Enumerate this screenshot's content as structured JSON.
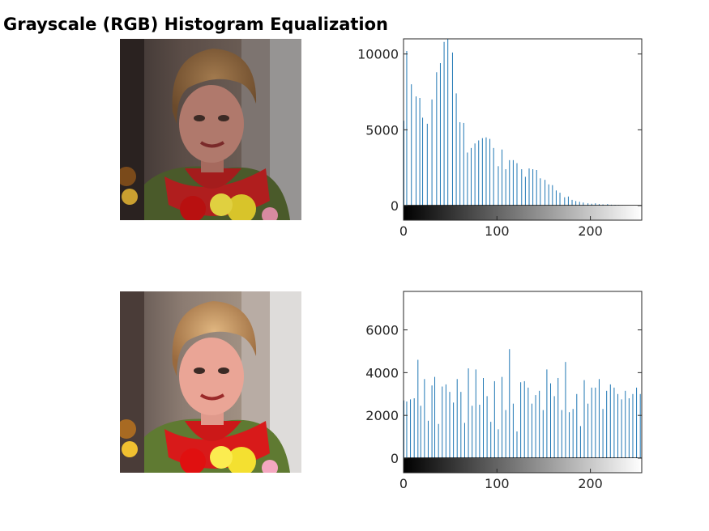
{
  "title": "Grayscale (RGB) Histogram Equalization",
  "images": [
    {
      "name": "original-image",
      "description_icon": "woman-portrait-image"
    },
    {
      "name": "equalized-image",
      "description_icon": "woman-portrait-image"
    }
  ],
  "colors": {
    "bar": "#1f77b4",
    "axis": "#262626"
  },
  "chart_data": [
    {
      "type": "bar",
      "title": "",
      "xlabel": "",
      "ylabel": "",
      "xlim": [
        0,
        255
      ],
      "ylim": [
        0,
        11000
      ],
      "xticks": [
        0,
        100,
        200
      ],
      "yticks": [
        0,
        5000,
        10000
      ],
      "colorbar": "gray",
      "x": [
        0,
        3,
        8,
        13,
        17,
        20,
        25,
        30,
        35,
        39,
        43,
        47,
        52,
        56,
        60,
        64,
        68,
        72,
        76,
        80,
        84,
        88,
        92,
        96,
        101,
        105,
        109,
        113,
        117,
        121,
        126,
        130,
        134,
        138,
        142,
        146,
        151,
        155,
        159,
        163,
        167,
        172,
        176,
        180,
        184,
        188,
        192,
        197,
        201,
        205,
        209,
        213,
        218,
        222,
        226,
        230,
        234,
        239,
        243,
        247,
        251
      ],
      "values": [
        5600,
        10200,
        8000,
        7200,
        7100,
        5800,
        5400,
        7000,
        8800,
        9400,
        10800,
        11000,
        10100,
        7400,
        5500,
        5450,
        3500,
        3800,
        4100,
        4300,
        4450,
        4500,
        4400,
        3800,
        2600,
        3700,
        2400,
        3000,
        3000,
        2800,
        2400,
        1900,
        2450,
        2400,
        2350,
        1800,
        1700,
        1400,
        1350,
        1000,
        850,
        550,
        600,
        380,
        300,
        250,
        200,
        150,
        120,
        150,
        100,
        80,
        100,
        60,
        50,
        40,
        30,
        20,
        20,
        10,
        10
      ]
    },
    {
      "type": "bar",
      "title": "",
      "xlabel": "",
      "ylabel": "",
      "xlim": [
        0,
        255
      ],
      "ylim": [
        0,
        7800
      ],
      "xticks": [
        0,
        100,
        200
      ],
      "yticks": [
        0,
        2000,
        4000,
        6000
      ],
      "colorbar": "gray",
      "x": [
        0,
        3,
        7,
        11,
        15,
        18,
        22,
        26,
        30,
        33,
        37,
        41,
        45,
        49,
        53,
        57,
        61,
        65,
        69,
        73,
        77,
        81,
        85,
        89,
        93,
        97,
        101,
        105,
        109,
        113,
        117,
        121,
        125,
        129,
        133,
        137,
        141,
        145,
        149,
        153,
        157,
        161,
        165,
        169,
        173,
        177,
        181,
        185,
        189,
        193,
        197,
        201,
        205,
        209,
        213,
        217,
        221,
        225,
        229,
        233,
        237,
        241,
        245,
        249,
        253
      ],
      "values": [
        2700,
        2650,
        2750,
        2800,
        4600,
        2450,
        3700,
        1750,
        3400,
        3800,
        1600,
        3350,
        3450,
        3100,
        2600,
        3700,
        3100,
        1650,
        4200,
        2450,
        4150,
        2500,
        3750,
        2900,
        1700,
        3600,
        1350,
        3800,
        2250,
        5100,
        2550,
        1250,
        3550,
        3600,
        3300,
        2550,
        2950,
        3150,
        2250,
        4150,
        3500,
        2900,
        3750,
        2250,
        4500,
        2150,
        2300,
        3000,
        1500,
        3650,
        2550,
        3300,
        3300,
        3700,
        2300,
        3150,
        3450,
        3300,
        3000,
        2750,
        3150,
        2800,
        3000,
        3300,
        3000
      ]
    }
  ]
}
